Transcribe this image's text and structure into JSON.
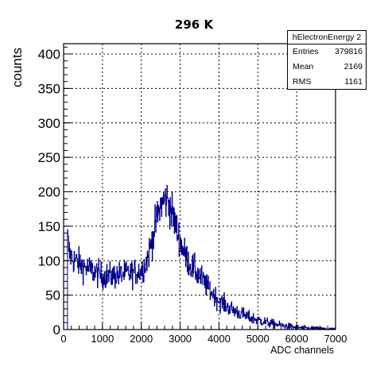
{
  "chart_data": {
    "type": "histogram",
    "title": "296 K",
    "xlabel": "ADC channels",
    "ylabel": "counts",
    "xlim": [
      0,
      7000
    ],
    "ylim": [
      0,
      415
    ],
    "grid": true,
    "x_ticks": [
      0,
      1000,
      2000,
      3000,
      4000,
      5000,
      6000,
      7000
    ],
    "y_ticks": [
      0,
      50,
      100,
      150,
      200,
      250,
      300,
      350,
      400
    ],
    "line_color": "#00008b",
    "bin_width": 10,
    "series": [
      {
        "x": [
          100,
          150,
          250,
          500,
          750,
          1000,
          1250,
          1500,
          1750,
          2000,
          2100,
          2200,
          2300,
          2400,
          2500,
          2600,
          2650,
          2700,
          2800,
          2900,
          3000,
          3100,
          3250,
          3500,
          3750,
          4000,
          4250,
          4500,
          4750,
          5000,
          5250,
          5500,
          5750,
          6000,
          6250,
          6500,
          6750,
          7000
        ],
        "values": [
          135,
          110,
          102,
          92,
          85,
          78,
          78,
          80,
          82,
          86,
          95,
          112,
          135,
          160,
          180,
          188,
          190,
          185,
          168,
          148,
          128,
          112,
          95,
          78,
          58,
          42,
          32,
          25,
          18,
          14,
          10,
          7,
          5,
          3,
          2,
          1.5,
          1,
          0.8
        ]
      }
    ]
  },
  "stats_box": {
    "name": "hElectronEnergy 2",
    "entries_label": "Entries",
    "entries_value": "379816",
    "mean_label": "Mean",
    "mean_value": "2169",
    "rms_label": "RMS",
    "rms_value": "1161"
  }
}
